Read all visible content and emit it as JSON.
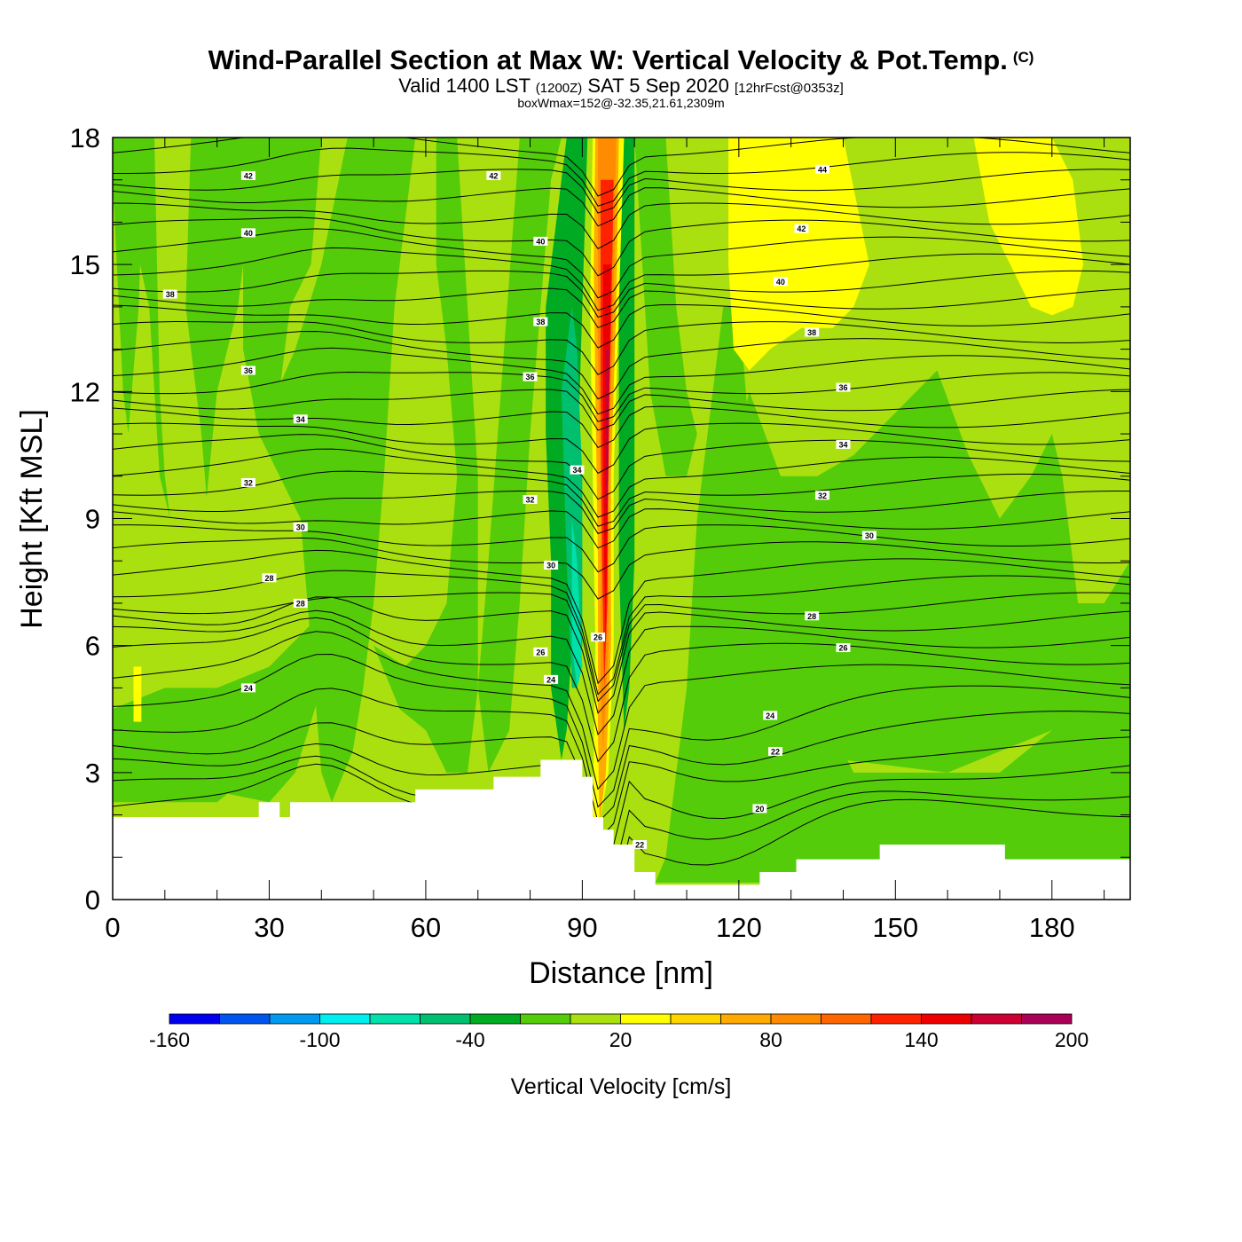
{
  "header": {
    "title": "Wind-Parallel Section at Max W: Vertical Velocity & Pot.Temp.",
    "copyright": "(C)",
    "valid": "Valid 1400 LST",
    "zulu": "(1200Z)",
    "date": "SAT 5 Sep 2020",
    "forecast": "[12hrFcst@0353z]",
    "box_info": "boxWmax=152@-32.35,21.61,2309m"
  },
  "chart_data": {
    "type": "heatmap",
    "xlabel": "Distance [nm]",
    "ylabel": "Height [Kft MSL]",
    "xlim": [
      0,
      195
    ],
    "ylim": [
      0,
      18
    ],
    "x_ticks": [
      0,
      30,
      60,
      90,
      120,
      150,
      180
    ],
    "y_ticks": [
      0,
      3,
      6,
      9,
      12,
      15,
      18
    ],
    "colorbar": {
      "label": "Vertical Velocity [cm/s]",
      "tick_labels": [
        -160,
        -100,
        -40,
        20,
        80,
        140,
        200
      ],
      "levels": [
        -160,
        -140,
        -120,
        -100,
        -80,
        -60,
        -40,
        -20,
        0,
        20,
        40,
        60,
        80,
        100,
        120,
        140,
        160,
        180,
        200
      ],
      "colors": [
        "#0000ee",
        "#0055ee",
        "#0099ee",
        "#00eeee",
        "#00e0a8",
        "#00c070",
        "#00aa22",
        "#55cc0a",
        "#aae010",
        "#ffff00",
        "#ffd500",
        "#ffaa00",
        "#ff8c00",
        "#ff6600",
        "#ff2200",
        "#ee0000",
        "#cc0033",
        "#aa0055"
      ]
    },
    "max_updraft": {
      "x": 95,
      "value_cm_s": 152,
      "altitude_m": 2309
    },
    "terrain_kft": {
      "x": [
        0,
        28,
        28,
        32,
        32,
        34,
        34,
        58,
        58,
        73,
        73,
        82,
        82,
        90,
        90,
        92,
        92,
        94,
        94,
        96,
        96,
        100,
        100,
        104,
        104,
        124,
        124,
        131,
        131,
        147,
        147,
        171,
        171,
        195
      ],
      "height": [
        1.95,
        1.95,
        2.3,
        2.3,
        1.95,
        1.95,
        2.3,
        2.3,
        2.6,
        2.6,
        2.9,
        2.9,
        3.3,
        3.3,
        2.9,
        2.9,
        1.95,
        1.95,
        1.65,
        1.65,
        1.3,
        1.3,
        0.65,
        0.65,
        0.35,
        0.35,
        0.65,
        0.65,
        0.95,
        0.95,
        1.3,
        1.3,
        0.95,
        0.95
      ]
    },
    "theta_contours": [
      {
        "level": 20,
        "label": "20",
        "lx": 124,
        "ly": 2.15
      },
      {
        "level": 22,
        "label": "22",
        "lx": 127,
        "ly": 3.5
      },
      {
        "level": 24,
        "label": "24",
        "lx": 26,
        "ly": 5.0
      },
      {
        "level": 24,
        "label": "24",
        "lx": 84,
        "ly": 5.2
      },
      {
        "level": 24,
        "label": "24",
        "lx": 126,
        "ly": 4.35
      },
      {
        "level": 26,
        "label": "26",
        "lx": 82,
        "ly": 5.85
      },
      {
        "level": 26,
        "label": "26",
        "lx": 140,
        "ly": 5.95
      },
      {
        "level": 28,
        "label": "28",
        "lx": 36,
        "ly": 7.0
      },
      {
        "level": 28,
        "label": "28",
        "lx": 134,
        "ly": 6.7
      },
      {
        "level": 28,
        "label": "28",
        "lx": 30,
        "ly": 7.6
      },
      {
        "level": 30,
        "label": "30",
        "lx": 36,
        "ly": 8.8
      },
      {
        "level": 30,
        "label": "30",
        "lx": 84,
        "ly": 7.9
      },
      {
        "level": 30,
        "label": "30",
        "lx": 145,
        "ly": 8.6
      },
      {
        "level": 32,
        "label": "32",
        "lx": 26,
        "ly": 9.85
      },
      {
        "level": 32,
        "label": "32",
        "lx": 80,
        "ly": 9.45
      },
      {
        "level": 32,
        "label": "32",
        "lx": 136,
        "ly": 9.55
      },
      {
        "level": 34,
        "label": "34",
        "lx": 36,
        "ly": 11.35
      },
      {
        "level": 34,
        "label": "34",
        "lx": 89,
        "ly": 10.15
      },
      {
        "level": 34,
        "label": "34",
        "lx": 140,
        "ly": 10.75
      },
      {
        "level": 36,
        "label": "36",
        "lx": 26,
        "ly": 12.5
      },
      {
        "level": 36,
        "label": "36",
        "lx": 80,
        "ly": 12.35
      },
      {
        "level": 36,
        "label": "36",
        "lx": 140,
        "ly": 12.1
      },
      {
        "level": 38,
        "label": "38",
        "lx": 11,
        "ly": 14.3
      },
      {
        "level": 38,
        "label": "38",
        "lx": 82,
        "ly": 13.65
      },
      {
        "level": 38,
        "label": "38",
        "lx": 134,
        "ly": 13.4
      },
      {
        "level": 40,
        "label": "40",
        "lx": 26,
        "ly": 15.75
      },
      {
        "level": 40,
        "label": "40",
        "lx": 82,
        "ly": 15.55
      },
      {
        "level": 40,
        "label": "40",
        "lx": 128,
        "ly": 14.6
      },
      {
        "level": 42,
        "label": "42",
        "lx": 26,
        "ly": 17.1
      },
      {
        "level": 42,
        "label": "42",
        "lx": 73,
        "ly": 17.1
      },
      {
        "level": 42,
        "label": "42",
        "lx": 132,
        "ly": 15.85
      },
      {
        "level": 44,
        "label": "44",
        "lx": 136,
        "ly": 17.25
      },
      {
        "level": 22,
        "label": "22",
        "lx": 101,
        "ly": 1.3
      },
      {
        "level": 26,
        "label": "26",
        "lx": 93,
        "ly": 6.2
      }
    ]
  }
}
